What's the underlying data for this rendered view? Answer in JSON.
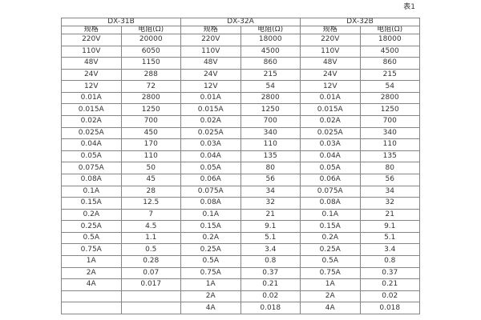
{
  "caption": "表1",
  "colors": {
    "background": "#ffffff",
    "border_outer": "#4d4d4d",
    "border_inner": "#858585",
    "text": "#333333"
  },
  "table": {
    "groups": [
      {
        "title": "DX-31B",
        "col_headers": [
          "规格",
          "电阻(Ω)"
        ],
        "rows": [
          [
            "220V",
            "20000"
          ],
          [
            "110V",
            "6050"
          ],
          [
            "48V",
            "1150"
          ],
          [
            "24V",
            "288"
          ],
          [
            "12V",
            "72"
          ],
          [
            "0.01A",
            "2800"
          ],
          [
            "0.015A",
            "1250"
          ],
          [
            "0.02A",
            "700"
          ],
          [
            "0.025A",
            "450"
          ],
          [
            "0.04A",
            "170"
          ],
          [
            "0.05A",
            "110"
          ],
          [
            "0.075A",
            "50"
          ],
          [
            "0.08A",
            "45"
          ],
          [
            "0.1A",
            "28"
          ],
          [
            "0.15A",
            "12.5"
          ],
          [
            "0.2A",
            "7"
          ],
          [
            "0.25A",
            "4.5"
          ],
          [
            "0.5A",
            "1.1"
          ],
          [
            "0.75A",
            "0.5"
          ],
          [
            "1A",
            "0.28"
          ],
          [
            "2A",
            "0.07"
          ],
          [
            "4A",
            "0.017"
          ],
          [
            "",
            ""
          ],
          [
            "",
            ""
          ]
        ]
      },
      {
        "title": "DX-32A",
        "col_headers": [
          "规格",
          "电阻(Ω)"
        ],
        "rows": [
          [
            "220V",
            "18000"
          ],
          [
            "110V",
            "4500"
          ],
          [
            "48V",
            "860"
          ],
          [
            "24V",
            "215"
          ],
          [
            "12V",
            "54"
          ],
          [
            "0.01A",
            "2800"
          ],
          [
            "0.015A",
            "1250"
          ],
          [
            "0.02A",
            "700"
          ],
          [
            "0.025A",
            "340"
          ],
          [
            "0.03A",
            "110"
          ],
          [
            "0.04A",
            "135"
          ],
          [
            "0.05A",
            "80"
          ],
          [
            "0.06A",
            "56"
          ],
          [
            "0.075A",
            "34"
          ],
          [
            "0.08A",
            "32"
          ],
          [
            "0.1A",
            "21"
          ],
          [
            "0.15A",
            "9.1"
          ],
          [
            "0.2A",
            "5.1"
          ],
          [
            "0.25A",
            "3.4"
          ],
          [
            "0.5A",
            "0.8"
          ],
          [
            "0.75A",
            "0.37"
          ],
          [
            "1A",
            "0.21"
          ],
          [
            "2A",
            "0.02"
          ],
          [
            "4A",
            "0.018"
          ]
        ]
      },
      {
        "title": "DX-32B",
        "col_headers": [
          "规格",
          "电阻(Ω)"
        ],
        "rows": [
          [
            "220V",
            "18000"
          ],
          [
            "110V",
            "4500"
          ],
          [
            "48V",
            "860"
          ],
          [
            "24V",
            "215"
          ],
          [
            "12V",
            "54"
          ],
          [
            "0.01A",
            "2800"
          ],
          [
            "0.015A",
            "1250"
          ],
          [
            "0.02A",
            "700"
          ],
          [
            "0.025A",
            "340"
          ],
          [
            "0.03A",
            "110"
          ],
          [
            "0.04A",
            "135"
          ],
          [
            "0.05A",
            "80"
          ],
          [
            "0.06A",
            "56"
          ],
          [
            "0.075A",
            "34"
          ],
          [
            "0.08A",
            "32"
          ],
          [
            "0.1A",
            "21"
          ],
          [
            "0.15A",
            "9.1"
          ],
          [
            "0.2A",
            "5.1"
          ],
          [
            "0.25A",
            "3.4"
          ],
          [
            "0.5A",
            "0.8"
          ],
          [
            "0.75A",
            "0.37"
          ],
          [
            "1A",
            "0.21"
          ],
          [
            "2A",
            "0.02"
          ],
          [
            "4A",
            "0.018"
          ]
        ]
      }
    ]
  }
}
